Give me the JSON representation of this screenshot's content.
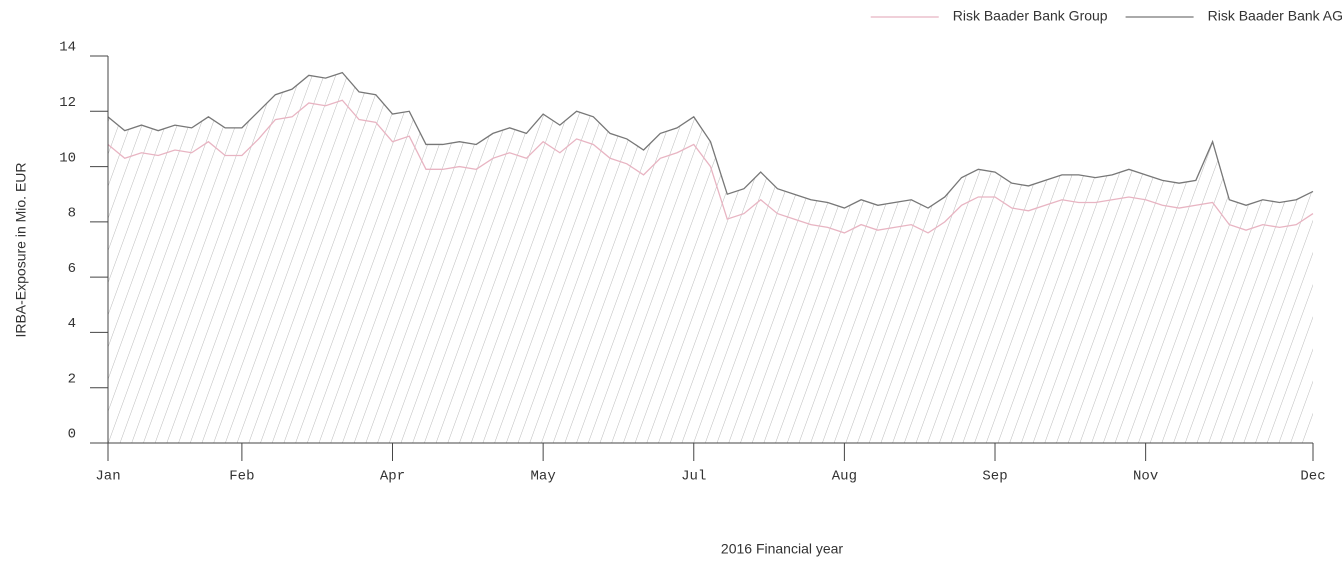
{
  "chart_data": {
    "type": "line",
    "x_label": "2016 Financial year",
    "y_label": "IRBA-Exposure in Mio. EUR",
    "categories": [
      "Jan",
      null,
      null,
      null,
      null,
      null,
      null,
      null,
      "Feb",
      null,
      null,
      null,
      null,
      null,
      null,
      null,
      null,
      "Apr",
      null,
      null,
      null,
      null,
      null,
      null,
      null,
      null,
      "May",
      null,
      null,
      null,
      null,
      null,
      null,
      null,
      null,
      "Jul",
      null,
      null,
      null,
      null,
      null,
      null,
      null,
      null,
      "Aug",
      null,
      null,
      null,
      null,
      null,
      null,
      null,
      null,
      "Sep",
      null,
      null,
      null,
      null,
      null,
      null,
      null,
      null,
      "Nov",
      null,
      null,
      null,
      null,
      null,
      null,
      null,
      null,
      null,
      "Dec"
    ],
    "series": [
      {
        "name": "Risk Baader Bank Group",
        "color": "#e8b4c2",
        "values": [
          10.8,
          10.3,
          10.5,
          10.4,
          10.6,
          10.5,
          10.9,
          10.4,
          10.4,
          11.0,
          11.7,
          11.8,
          12.3,
          12.2,
          12.4,
          11.7,
          11.6,
          10.9,
          11.1,
          9.9,
          9.9,
          10.0,
          9.9,
          10.3,
          10.5,
          10.3,
          10.9,
          10.5,
          11.0,
          10.8,
          10.3,
          10.1,
          9.7,
          10.3,
          10.5,
          10.8,
          10.0,
          8.1,
          8.3,
          8.8,
          8.3,
          8.1,
          7.9,
          7.8,
          7.6,
          7.9,
          7.7,
          7.8,
          7.9,
          7.6,
          8.0,
          8.6,
          8.9,
          8.9,
          8.5,
          8.4,
          8.6,
          8.8,
          8.7,
          8.7,
          8.8,
          8.9,
          8.8,
          8.6,
          8.5,
          8.6,
          8.7,
          7.9,
          7.7,
          7.9,
          7.8,
          7.9,
          8.3
        ]
      },
      {
        "name": "Risk Baader Bank AG",
        "color": "#777777",
        "values": [
          11.8,
          11.3,
          11.5,
          11.3,
          11.5,
          11.4,
          11.8,
          11.4,
          11.4,
          12.0,
          12.6,
          12.8,
          13.3,
          13.2,
          13.4,
          12.7,
          12.6,
          11.9,
          12.0,
          10.8,
          10.8,
          10.9,
          10.8,
          11.2,
          11.4,
          11.2,
          11.9,
          11.5,
          12.0,
          11.8,
          11.2,
          11.0,
          10.6,
          11.2,
          11.4,
          11.8,
          10.9,
          9.0,
          9.2,
          9.8,
          9.2,
          9.0,
          8.8,
          8.7,
          8.5,
          8.8,
          8.6,
          8.7,
          8.8,
          8.5,
          8.9,
          9.6,
          9.9,
          9.8,
          9.4,
          9.3,
          9.5,
          9.7,
          9.7,
          9.6,
          9.7,
          9.9,
          9.7,
          9.5,
          9.4,
          9.5,
          10.9,
          8.8,
          8.6,
          8.8,
          8.7,
          8.8,
          9.1
        ]
      }
    ],
    "ylim": [
      0,
      14
    ],
    "yticks": [
      0,
      2,
      4,
      6,
      8,
      10,
      12,
      14
    ],
    "legend": "top-right"
  }
}
